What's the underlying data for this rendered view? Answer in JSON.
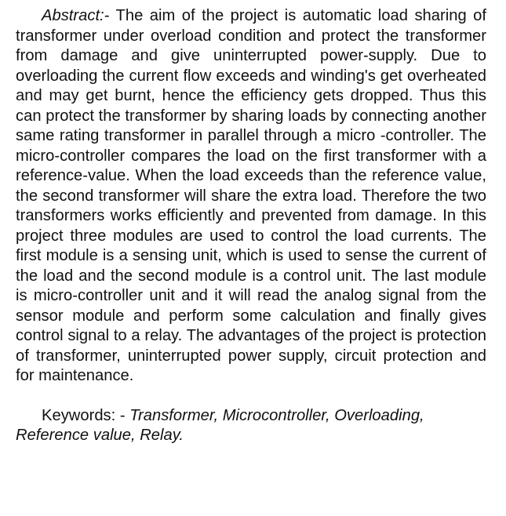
{
  "abstract": {
    "lead": "Abstract:-",
    "body": "The aim of the project is automatic load sharing of transformer under overload condition and protect the transformer from damage and give uninterrupted power-supply. Due to overloading the current flow exceeds and winding's get overheated and may get burnt, hence the efficiency gets dropped. Thus this can protect the transformer by sharing loads by connecting another same rating transformer in parallel through a micro -controller. The micro-controller compares the load on the first transformer with a reference-value. When the load exceeds than the reference value, the second transformer will share the extra load. Therefore the two transformers works efficiently and prevented from damage. In this project three modules are used to control the load currents. The first module is a sensing unit, which is used to sense the current of the load and the second module is a control unit. The last module is micro-controller unit and it will read the analog signal from the sensor module and perform some calculation and finally gives control signal to a relay. The advantages of the project is protection of transformer, uninterrupted power supply, circuit protection and for maintenance."
  },
  "keywords": {
    "label": "Keywords: -",
    "terms": "Transformer, Microcontroller, Overloading, Reference value, Relay."
  }
}
